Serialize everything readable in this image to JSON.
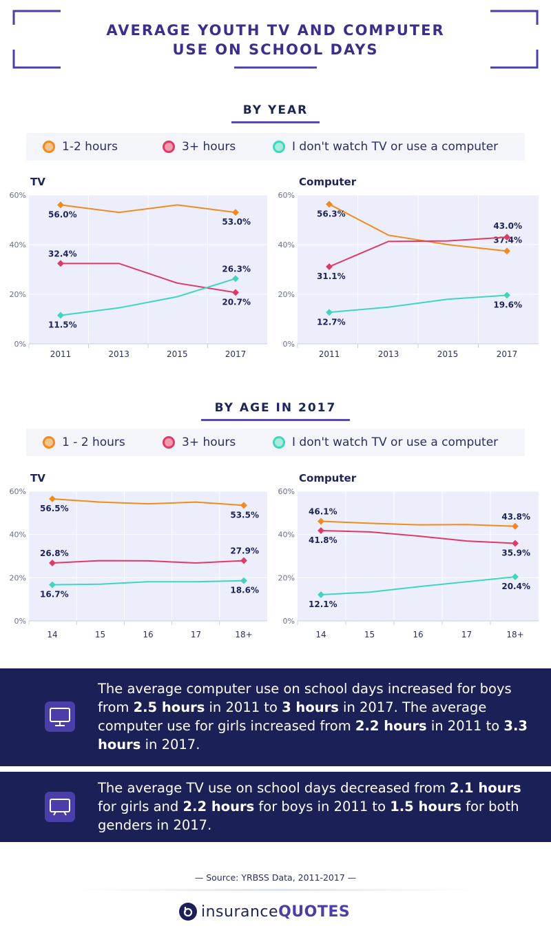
{
  "title": "AVERAGE YOUTH TV AND COMPUTER USE ON SCHOOL DAYS",
  "colors": {
    "orange": "#f28a1e",
    "red": "#e03a64",
    "teal": "#3fd6bd",
    "navy": "#1b2157",
    "purple": "#5948b4",
    "plot_bg": "#eceefb"
  },
  "sections": {
    "by_year": {
      "heading": "BY YEAR",
      "legend": [
        "1-2 hours",
        "3+ hours",
        "I don't watch TV or use a computer"
      ]
    },
    "by_age": {
      "heading": "BY AGE IN 2017",
      "legend": [
        "1 - 2 hours",
        "3+ hours",
        "I don't watch TV or use a computer"
      ]
    }
  },
  "chart_data": [
    {
      "type": "line",
      "panel": "TV",
      "section": "by_year",
      "categories": [
        "2011",
        "2013",
        "2015",
        "2017"
      ],
      "ylim": [
        0,
        60
      ],
      "yticks": [
        "0%",
        "20%",
        "40%",
        "60%"
      ],
      "grid": true,
      "series": [
        {
          "name": "1-2 hours",
          "color": "orange",
          "values": [
            56.0,
            53.0,
            56.0,
            53.0
          ],
          "labels": [
            "56.0%",
            "",
            "",
            "53.0%"
          ]
        },
        {
          "name": "3+ hours",
          "color": "red",
          "values": [
            32.4,
            32.4,
            24.5,
            20.7
          ],
          "labels": [
            "32.4%",
            "",
            "",
            "20.7%"
          ]
        },
        {
          "name": "I don't watch TV or use a computer",
          "color": "teal",
          "values": [
            11.5,
            14.5,
            19.0,
            26.3
          ],
          "labels": [
            "11.5%",
            "",
            "",
            "26.3%"
          ]
        }
      ]
    },
    {
      "type": "line",
      "panel": "Computer",
      "section": "by_year",
      "categories": [
        "2011",
        "2013",
        "2015",
        "2017"
      ],
      "ylim": [
        0,
        60
      ],
      "yticks": [
        "0%",
        "20%",
        "40%",
        "60%"
      ],
      "grid": true,
      "series": [
        {
          "name": "1-2 hours",
          "color": "orange",
          "values": [
            56.3,
            43.8,
            40.0,
            37.4
          ],
          "labels": [
            "56.3%",
            "",
            "",
            "37.4%"
          ]
        },
        {
          "name": "3+ hours",
          "color": "red",
          "values": [
            31.1,
            41.3,
            41.5,
            43.0
          ],
          "labels": [
            "31.1%",
            "",
            "",
            "43.0%"
          ]
        },
        {
          "name": "I don't watch TV or use a computer",
          "color": "teal",
          "values": [
            12.7,
            14.8,
            18.0,
            19.6
          ],
          "labels": [
            "12.7%",
            "",
            "",
            "19.6%"
          ]
        }
      ]
    },
    {
      "type": "line",
      "panel": "TV",
      "section": "by_age",
      "categories": [
        "14",
        "15",
        "16",
        "17",
        "18+"
      ],
      "ylim": [
        0,
        60
      ],
      "yticks": [
        "0%",
        "20%",
        "40%",
        "60%"
      ],
      "grid": true,
      "series": [
        {
          "name": "1 - 2 hours",
          "color": "orange",
          "values": [
            56.5,
            55.0,
            54.2,
            55.0,
            53.5
          ],
          "labels": [
            "56.5%",
            "",
            "",
            "",
            "53.5%"
          ]
        },
        {
          "name": "3+ hours",
          "color": "red",
          "values": [
            26.8,
            27.9,
            27.8,
            26.8,
            27.9
          ],
          "labels": [
            "26.8%",
            "",
            "",
            "",
            "27.9%"
          ]
        },
        {
          "name": "I don't watch TV or use a computer",
          "color": "teal",
          "values": [
            16.7,
            17.0,
            18.1,
            18.1,
            18.6
          ],
          "labels": [
            "16.7%",
            "",
            "",
            "",
            "18.6%"
          ]
        }
      ]
    },
    {
      "type": "line",
      "panel": "Computer",
      "section": "by_age",
      "categories": [
        "14",
        "15",
        "16",
        "17",
        "18+"
      ],
      "ylim": [
        0,
        60
      ],
      "yticks": [
        "0%",
        "20%",
        "40%",
        "60%"
      ],
      "grid": true,
      "series": [
        {
          "name": "1 - 2 hours",
          "color": "orange",
          "values": [
            46.1,
            45.2,
            44.5,
            44.6,
            43.8
          ],
          "labels": [
            "46.1%",
            "",
            "",
            "",
            "43.8%"
          ]
        },
        {
          "name": "3+ hours",
          "color": "red",
          "values": [
            41.8,
            41.2,
            39.3,
            37.0,
            35.9
          ],
          "labels": [
            "41.8%",
            "",
            "",
            "",
            "35.9%"
          ]
        },
        {
          "name": "I don't watch TV or use a computer",
          "color": "teal",
          "values": [
            12.1,
            13.3,
            15.8,
            18.1,
            20.4
          ],
          "labels": [
            "12.1%",
            "",
            "",
            "",
            "20.4%"
          ]
        }
      ]
    }
  ],
  "info_boxes": [
    {
      "icon": "monitor-icon",
      "segments": [
        {
          "text": "The average computer use on school days increased for boys from ",
          "bold": false
        },
        {
          "text": "2.5 hours",
          "bold": true
        },
        {
          "text": " in 2011 to ",
          "bold": false
        },
        {
          "text": "3 hours",
          "bold": true
        },
        {
          "text": " in 2017. The average computer use for girls increased from ",
          "bold": false
        },
        {
          "text": "2.2 hours",
          "bold": true
        },
        {
          "text": " in 2011 to ",
          "bold": false
        },
        {
          "text": "3.3 hours",
          "bold": true
        },
        {
          "text": " in 2017.",
          "bold": false
        }
      ]
    },
    {
      "icon": "tv-icon",
      "segments": [
        {
          "text": "The average TV use on school days decreased from ",
          "bold": false
        },
        {
          "text": "2.1 hours",
          "bold": true
        },
        {
          "text": " for girls and ",
          "bold": false
        },
        {
          "text": "2.2 hours",
          "bold": true
        },
        {
          "text": " for boys in 2011 to ",
          "bold": false
        },
        {
          "text": "1.5 hours",
          "bold": true
        },
        {
          "text": " for both genders in 2017.",
          "bold": false
        }
      ]
    }
  ],
  "source": "— Source: YRBSS Data, 2011-2017 —",
  "logo": {
    "part1": "insurance",
    "part2": "QUOTES"
  }
}
